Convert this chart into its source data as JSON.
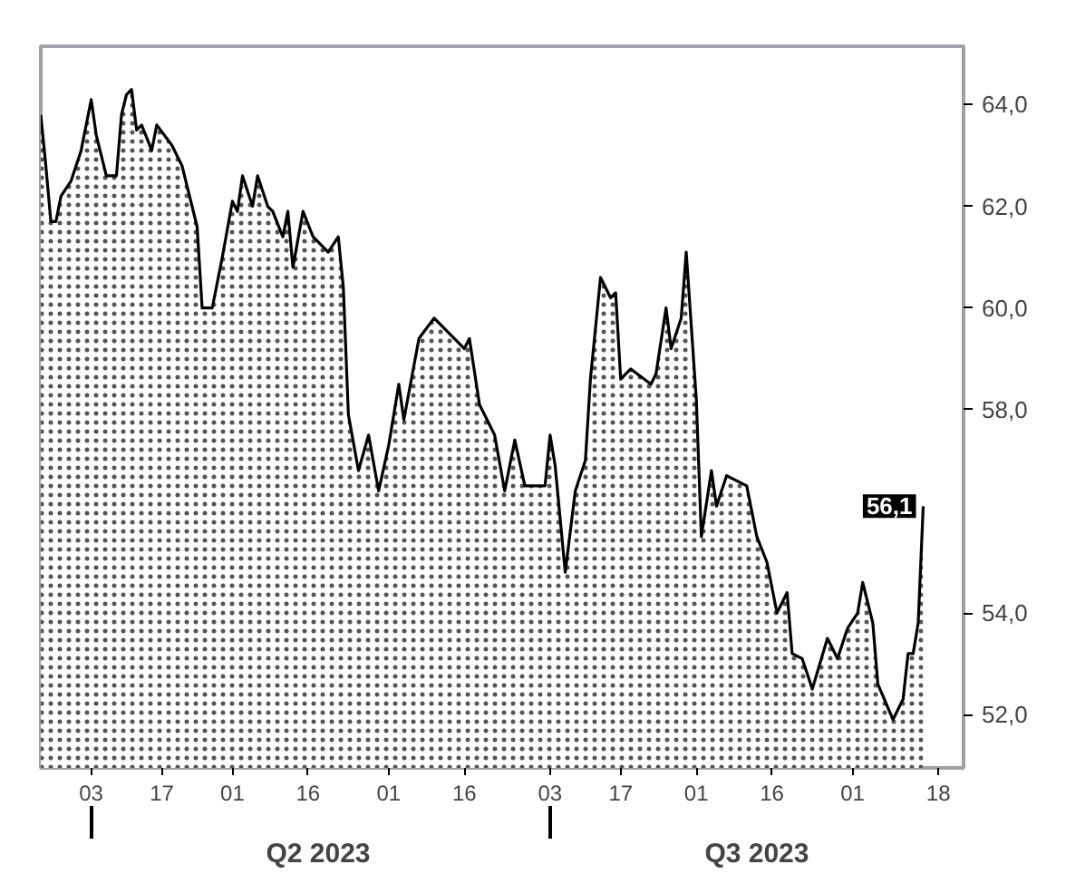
{
  "chart_data": {
    "type": "area",
    "x": [
      "2023-03-24",
      "2023-03-25",
      "2023-03-26",
      "2023-03-27",
      "2023-03-28",
      "2023-03-30",
      "2023-04-01",
      "2023-04-03",
      "2023-04-04",
      "2023-04-06",
      "2023-04-08",
      "2023-04-09",
      "2023-04-10",
      "2023-04-11",
      "2023-04-12",
      "2023-04-13",
      "2023-04-15",
      "2023-04-16",
      "2023-04-19",
      "2023-04-21",
      "2023-04-24",
      "2023-04-25",
      "2023-04-27",
      "2023-04-29",
      "2023-05-01",
      "2023-05-02",
      "2023-05-03",
      "2023-05-05",
      "2023-05-06",
      "2023-05-08",
      "2023-05-09",
      "2023-05-11",
      "2023-05-12",
      "2023-05-13",
      "2023-05-15",
      "2023-05-17",
      "2023-05-20",
      "2023-05-22",
      "2023-05-23",
      "2023-05-24",
      "2023-05-26",
      "2023-05-28",
      "2023-05-30",
      "2023-06-01",
      "2023-06-03",
      "2023-06-04",
      "2023-06-07",
      "2023-06-10",
      "2023-06-16",
      "2023-06-17",
      "2023-06-19",
      "2023-06-22",
      "2023-06-24",
      "2023-06-26",
      "2023-06-28",
      "2023-07-02",
      "2023-07-03",
      "2023-07-04",
      "2023-07-06",
      "2023-07-08",
      "2023-07-10",
      "2023-07-11",
      "2023-07-12",
      "2023-07-13",
      "2023-07-15",
      "2023-07-16",
      "2023-07-17",
      "2023-07-19",
      "2023-07-23",
      "2023-07-24",
      "2023-07-26",
      "2023-07-27",
      "2023-07-29",
      "2023-07-30",
      "2023-08-01",
      "2023-08-02",
      "2023-08-04",
      "2023-08-05",
      "2023-08-07",
      "2023-08-11",
      "2023-08-13",
      "2023-08-15",
      "2023-08-17",
      "2023-08-19",
      "2023-08-20",
      "2023-08-22",
      "2023-08-24",
      "2023-08-27",
      "2023-08-29",
      "2023-08-31",
      "2023-09-02",
      "2023-09-03",
      "2023-09-05",
      "2023-09-06",
      "2023-09-09",
      "2023-09-11",
      "2023-09-12",
      "2023-09-13",
      "2023-09-14",
      "2023-09-15"
    ],
    "series": [
      {
        "color": "#000000",
        "values": [
          63.8,
          62.8,
          61.7,
          61.7,
          62.2,
          62.5,
          63.1,
          64.1,
          63.4,
          62.6,
          62.6,
          63.8,
          64.2,
          64.3,
          63.5,
          63.6,
          63.1,
          63.6,
          63.2,
          62.8,
          61.6,
          60.0,
          60.0,
          61.0,
          62.1,
          61.9,
          62.6,
          62.0,
          62.6,
          62.0,
          61.9,
          61.4,
          61.9,
          60.8,
          61.9,
          61.4,
          61.1,
          61.4,
          60.4,
          57.9,
          56.8,
          57.5,
          56.4,
          57.3,
          58.5,
          57.8,
          59.4,
          59.8,
          59.2,
          59.4,
          58.1,
          57.5,
          56.4,
          57.4,
          56.5,
          56.5,
          57.5,
          56.9,
          54.8,
          56.4,
          57.0,
          58.6,
          59.6,
          60.6,
          60.2,
          60.3,
          58.6,
          58.8,
          58.5,
          58.7,
          60.0,
          59.2,
          59.8,
          61.1,
          58.2,
          55.5,
          56.8,
          56.1,
          56.7,
          56.5,
          55.5,
          55.0,
          54.0,
          54.4,
          53.2,
          53.1,
          52.5,
          53.5,
          53.1,
          53.7,
          54.0,
          54.6,
          53.8,
          52.6,
          51.9,
          52.3,
          53.2,
          53.2,
          53.8,
          56.1
        ]
      }
    ],
    "xlim": [
      "2023-03-24",
      "2023-09-23"
    ],
    "xticks": [
      {
        "value": "2023-04-03",
        "label": "03"
      },
      {
        "value": "2023-04-17",
        "label": "17"
      },
      {
        "value": "2023-05-01",
        "label": "01"
      },
      {
        "value": "2023-05-16",
        "label": "16"
      },
      {
        "value": "2023-06-01",
        "label": "01"
      },
      {
        "value": "2023-06-16",
        "label": "16"
      },
      {
        "value": "2023-07-03",
        "label": "03"
      },
      {
        "value": "2023-07-17",
        "label": "17"
      },
      {
        "value": "2023-08-01",
        "label": "01"
      },
      {
        "value": "2023-08-16",
        "label": "16"
      },
      {
        "value": "2023-09-01",
        "label": "01"
      },
      {
        "value": "2023-09-18",
        "label": "18"
      }
    ],
    "x2lim": [
      "2023-03-24",
      "2023-09-23"
    ],
    "x2ticks": [
      {
        "value": "2023-04-03",
        "label": null
      },
      {
        "value": "2023-05-18",
        "label": "Q2 2023"
      },
      {
        "value": "2023-07-03",
        "label": null
      },
      {
        "value": "2023-08-13",
        "label": "Q3 2023"
      }
    ],
    "ylim": [
      50.95,
      65.15
    ],
    "yticks": [
      {
        "value": 52,
        "label": "52,0"
      },
      {
        "value": 54,
        "label": "54,0"
      },
      {
        "value": 58,
        "label": "58,0"
      },
      {
        "value": 60,
        "label": "60,0"
      },
      {
        "value": 62,
        "label": "62,0"
      },
      {
        "value": 64,
        "label": "64,0"
      }
    ],
    "annotations": [
      {
        "text": "56,1",
        "x": "2023-09-15",
        "y": 56.1
      }
    ],
    "grid": false
  }
}
